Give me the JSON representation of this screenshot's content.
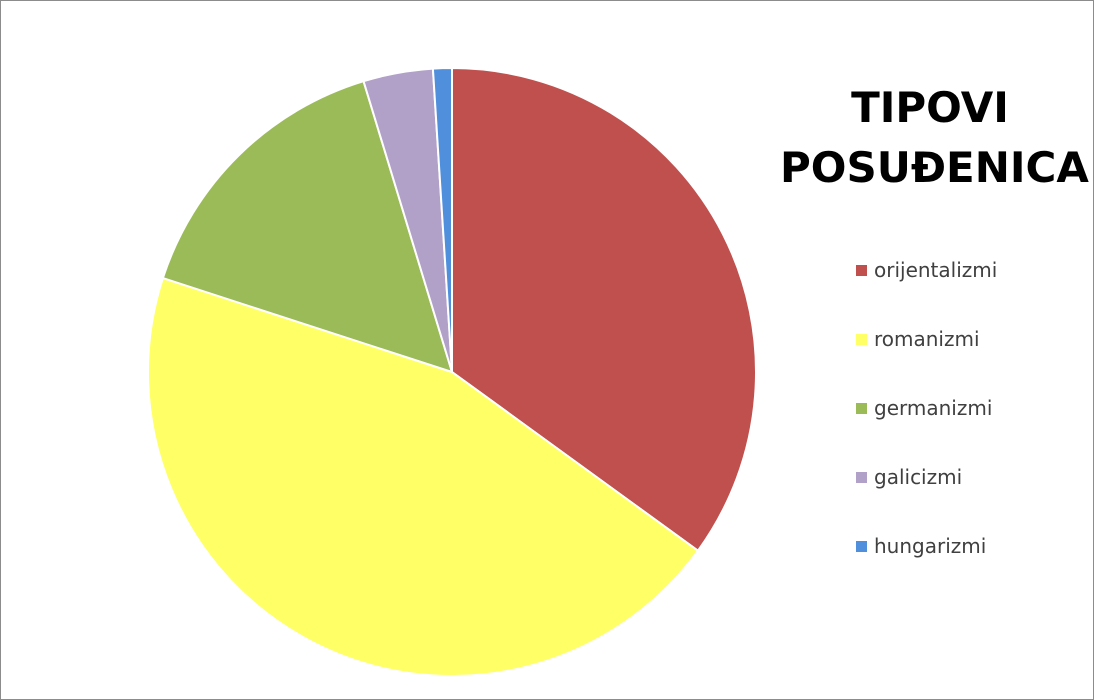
{
  "chart_data": {
    "type": "pie",
    "title_lines": [
      "TIPOVI",
      "POSUĐENICA"
    ],
    "legend_position": "right",
    "start_angle_deg": 0,
    "direction": "clockwise",
    "slices": [
      {
        "label": "orijentalizmi",
        "value": 35,
        "color": "#c0504d"
      },
      {
        "label": "romanizmi",
        "value": 45,
        "color": "#ffff66"
      },
      {
        "label": "germanizmi",
        "value": 15.3,
        "color": "#9bbb59"
      },
      {
        "label": "galicizmi",
        "value": 3.7,
        "color": "#b1a0c7"
      },
      {
        "label": "hungarizmi",
        "value": 1,
        "color": "#4f8fdc"
      }
    ]
  }
}
